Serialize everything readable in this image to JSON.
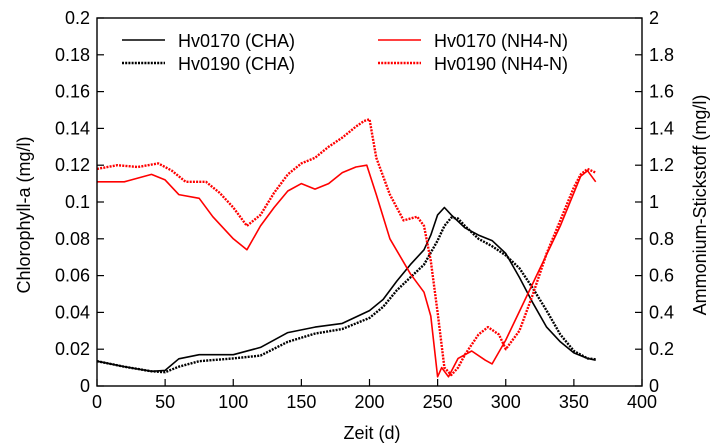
{
  "chart_data": {
    "type": "line",
    "xlabel": "Zeit (d)",
    "ylabel_left": "Chlorophyll-a (mg/l)",
    "ylabel_right": "Ammonium-Stickstoff (mg/l)",
    "xlim": [
      0,
      400
    ],
    "ylim_left": [
      0,
      0.2
    ],
    "ylim_right": [
      0,
      2
    ],
    "x_ticks": [
      "0",
      "50",
      "100",
      "150",
      "200",
      "250",
      "300",
      "350",
      "400"
    ],
    "y_left_ticks": [
      "0",
      "0.02",
      "0.04",
      "0.06",
      "0.08",
      "0.1",
      "0.12",
      "0.14",
      "0.16",
      "0.18",
      "0.2"
    ],
    "y_right_ticks": [
      "0",
      "0.2",
      "0.4",
      "0.6",
      "0.8",
      "1",
      "1.2",
      "1.4",
      "1.6",
      "1.8",
      "2"
    ],
    "grid": false,
    "legend_position": "top",
    "colors": {
      "black": "#000000",
      "red": "#ff0000"
    },
    "series": [
      {
        "name": "Hv0170 (CHA)",
        "axis": "left",
        "color": "#000000",
        "dash": "solid",
        "x": [
          0,
          20,
          40,
          50,
          60,
          75,
          100,
          120,
          140,
          160,
          180,
          200,
          210,
          220,
          230,
          240,
          245,
          250,
          255,
          260,
          270,
          280,
          290,
          300,
          310,
          320,
          330,
          340,
          350,
          360,
          366
        ],
        "y": [
          0.0135,
          0.0105,
          0.008,
          0.0085,
          0.0148,
          0.017,
          0.017,
          0.021,
          0.029,
          0.032,
          0.034,
          0.041,
          0.047,
          0.057,
          0.066,
          0.074,
          0.082,
          0.093,
          0.097,
          0.093,
          0.086,
          0.082,
          0.079,
          0.072,
          0.059,
          0.045,
          0.032,
          0.024,
          0.018,
          0.015,
          0.014
        ]
      },
      {
        "name": "Hv0190 (CHA)",
        "axis": "left",
        "color": "#000000",
        "dash": "dotted",
        "x": [
          0,
          20,
          40,
          50,
          60,
          75,
          100,
          120,
          140,
          160,
          180,
          200,
          210,
          220,
          230,
          240,
          250,
          255,
          260,
          265,
          270,
          280,
          290,
          300,
          310,
          320,
          330,
          340,
          350,
          360,
          366
        ],
        "y": [
          0.0135,
          0.0105,
          0.008,
          0.0075,
          0.0105,
          0.0135,
          0.015,
          0.0165,
          0.024,
          0.0285,
          0.031,
          0.037,
          0.043,
          0.052,
          0.059,
          0.066,
          0.079,
          0.087,
          0.0915,
          0.091,
          0.087,
          0.08,
          0.076,
          0.071,
          0.064,
          0.053,
          0.041,
          0.028,
          0.019,
          0.015,
          0.0145
        ]
      },
      {
        "name": "Hv0170 (NH4-N)",
        "axis": "right",
        "color": "#ff0000",
        "dash": "solid",
        "x": [
          0,
          20,
          40,
          50,
          60,
          75,
          85,
          100,
          110,
          120,
          130,
          140,
          150,
          160,
          170,
          180,
          190,
          198,
          205,
          215,
          230,
          240,
          245,
          250,
          253,
          258,
          265,
          275,
          285,
          290,
          300,
          320,
          340,
          350,
          355,
          360,
          366
        ],
        "y": [
          1.11,
          1.11,
          1.15,
          1.12,
          1.04,
          1.02,
          0.92,
          0.8,
          0.74,
          0.87,
          0.97,
          1.06,
          1.1,
          1.07,
          1.1,
          1.16,
          1.19,
          1.2,
          1.04,
          0.8,
          0.61,
          0.51,
          0.38,
          0.05,
          0.1,
          0.05,
          0.15,
          0.19,
          0.14,
          0.12,
          0.25,
          0.56,
          0.87,
          1.05,
          1.14,
          1.17,
          1.11
        ]
      },
      {
        "name": "Hv0190 (NH4-N)",
        "axis": "right",
        "color": "#ff0000",
        "dash": "dotted",
        "x": [
          0,
          15,
          30,
          45,
          55,
          65,
          80,
          90,
          100,
          110,
          120,
          130,
          140,
          150,
          160,
          170,
          180,
          190,
          196,
          200,
          205,
          215,
          225,
          235,
          240,
          245,
          250,
          255,
          260,
          265,
          270,
          280,
          287,
          295,
          300,
          310,
          320,
          330,
          340,
          350,
          355,
          360,
          366
        ],
        "y": [
          1.18,
          1.2,
          1.19,
          1.21,
          1.17,
          1.11,
          1.11,
          1.05,
          0.97,
          0.87,
          0.93,
          1.05,
          1.15,
          1.21,
          1.24,
          1.3,
          1.35,
          1.41,
          1.44,
          1.45,
          1.24,
          1.04,
          0.9,
          0.92,
          0.87,
          0.68,
          0.4,
          0.1,
          0.06,
          0.1,
          0.17,
          0.28,
          0.32,
          0.28,
          0.2,
          0.3,
          0.5,
          0.72,
          0.9,
          1.08,
          1.15,
          1.18,
          1.16
        ]
      }
    ]
  }
}
